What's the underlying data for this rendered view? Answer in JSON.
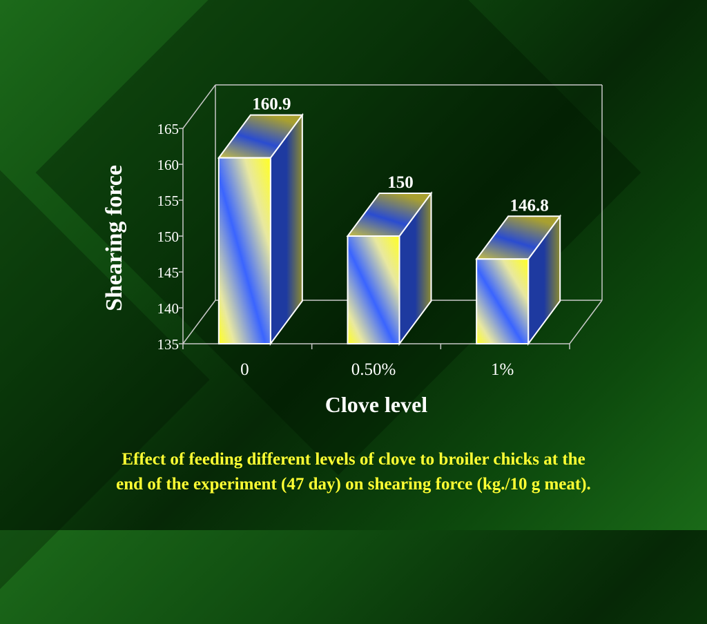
{
  "chart_data": {
    "type": "bar",
    "style": "3d",
    "categories": [
      "0",
      "0.50%",
      "1%"
    ],
    "values": [
      160.9,
      150,
      146.8
    ],
    "data_labels": [
      "160.9",
      "150",
      "146.8"
    ],
    "xlabel": "Clove level",
    "ylabel": "Shearing force",
    "ylim": [
      135,
      165
    ],
    "yticks": [
      "135",
      "140",
      "145",
      "150",
      "155",
      "160",
      "165"
    ],
    "grid": false,
    "legend": "none",
    "colors": {
      "bar_main": "#3a64ff",
      "bar_highlight": "#ffff33",
      "background": "#0a3a0a",
      "axis": "#c8c8c8"
    }
  },
  "caption": {
    "line1": "Effect of feeding different levels of clove to broiler chicks  at the",
    "line2": "end of the experiment (47 day) on shearing force (kg./10 g meat)."
  }
}
